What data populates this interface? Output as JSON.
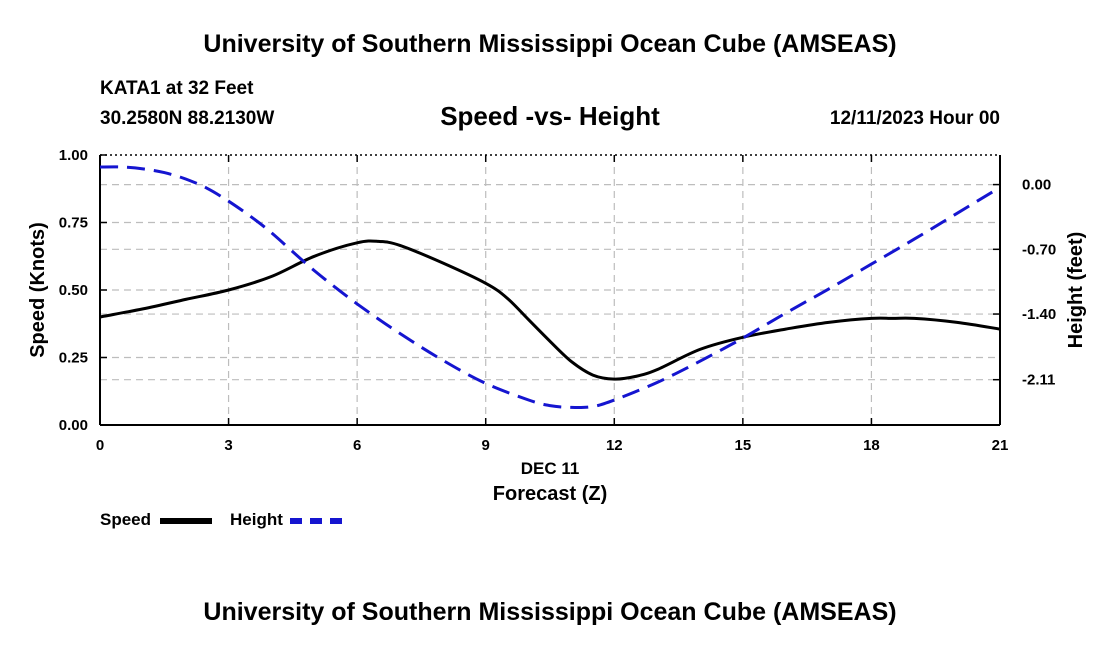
{
  "header": {
    "title": "University of Southern Mississippi Ocean Cube (AMSEAS)",
    "footer_title": "University of Southern Mississippi Ocean Cube (AMSEAS)"
  },
  "chart_data": {
    "type": "line",
    "title": "Speed -vs- Height",
    "station": "KATA1 at 32 Feet",
    "location": "30.2580N  88.2130W",
    "date_label": "12/11/2023 Hour 00",
    "xlabel": "Forecast (Z)",
    "xlabel_date": "DEC 11",
    "ylabel": "Speed (Knots)",
    "y2label": "Height (feet)",
    "xlim": [
      0,
      21
    ],
    "ylim": [
      0,
      1
    ],
    "y2lim": [
      -2.6,
      0.32
    ],
    "x_ticks": [
      0,
      3,
      6,
      9,
      12,
      15,
      18,
      21
    ],
    "x_tick_labels": [
      "0",
      "3",
      "6",
      "9",
      "12",
      "15",
      "18",
      "21"
    ],
    "y_ticks": [
      0,
      0.25,
      0.5,
      0.75,
      1.0
    ],
    "y_tick_labels": [
      "0.00",
      "0.25",
      "0.50",
      "0.75",
      "1.00"
    ],
    "y2_ticks": [
      0.0,
      -0.7,
      -1.4,
      -2.11
    ],
    "y2_tick_labels": [
      "0.00",
      "-0.70",
      "-1.40",
      "-2.11"
    ],
    "grid": true,
    "series": [
      {
        "name": "Speed",
        "axis": "left",
        "color": "#000000",
        "dash": "solid",
        "x": [
          0,
          1,
          2,
          3,
          4,
          5,
          6,
          6.5,
          7,
          8,
          9,
          9.5,
          10,
          10.5,
          11,
          11.5,
          12,
          12.5,
          13,
          14,
          15,
          16,
          17,
          18,
          18.5,
          19,
          20,
          21
        ],
        "values": [
          0.4,
          0.43,
          0.465,
          0.5,
          0.55,
          0.625,
          0.675,
          0.68,
          0.665,
          0.6,
          0.525,
          0.47,
          0.39,
          0.31,
          0.235,
          0.185,
          0.17,
          0.18,
          0.205,
          0.28,
          0.325,
          0.355,
          0.38,
          0.395,
          0.395,
          0.395,
          0.38,
          0.355
        ]
      },
      {
        "name": "Height",
        "axis": "right",
        "color": "#1515d0",
        "dash": "dashed",
        "x": [
          0,
          0.5,
          1,
          1.5,
          2,
          2.5,
          3,
          3.5,
          4,
          5,
          6,
          7,
          8,
          9,
          10,
          10.5,
          11,
          11.5,
          12,
          13,
          14,
          15,
          16,
          17,
          18,
          19,
          20,
          21
        ],
        "values": [
          0.19,
          0.19,
          0.17,
          0.13,
          0.06,
          -0.04,
          -0.18,
          -0.34,
          -0.52,
          -0.93,
          -1.29,
          -1.61,
          -1.9,
          -2.15,
          -2.33,
          -2.39,
          -2.41,
          -2.4,
          -2.33,
          -2.14,
          -1.91,
          -1.66,
          -1.39,
          -1.13,
          -0.86,
          -0.59,
          -0.31,
          -0.03
        ]
      }
    ]
  }
}
